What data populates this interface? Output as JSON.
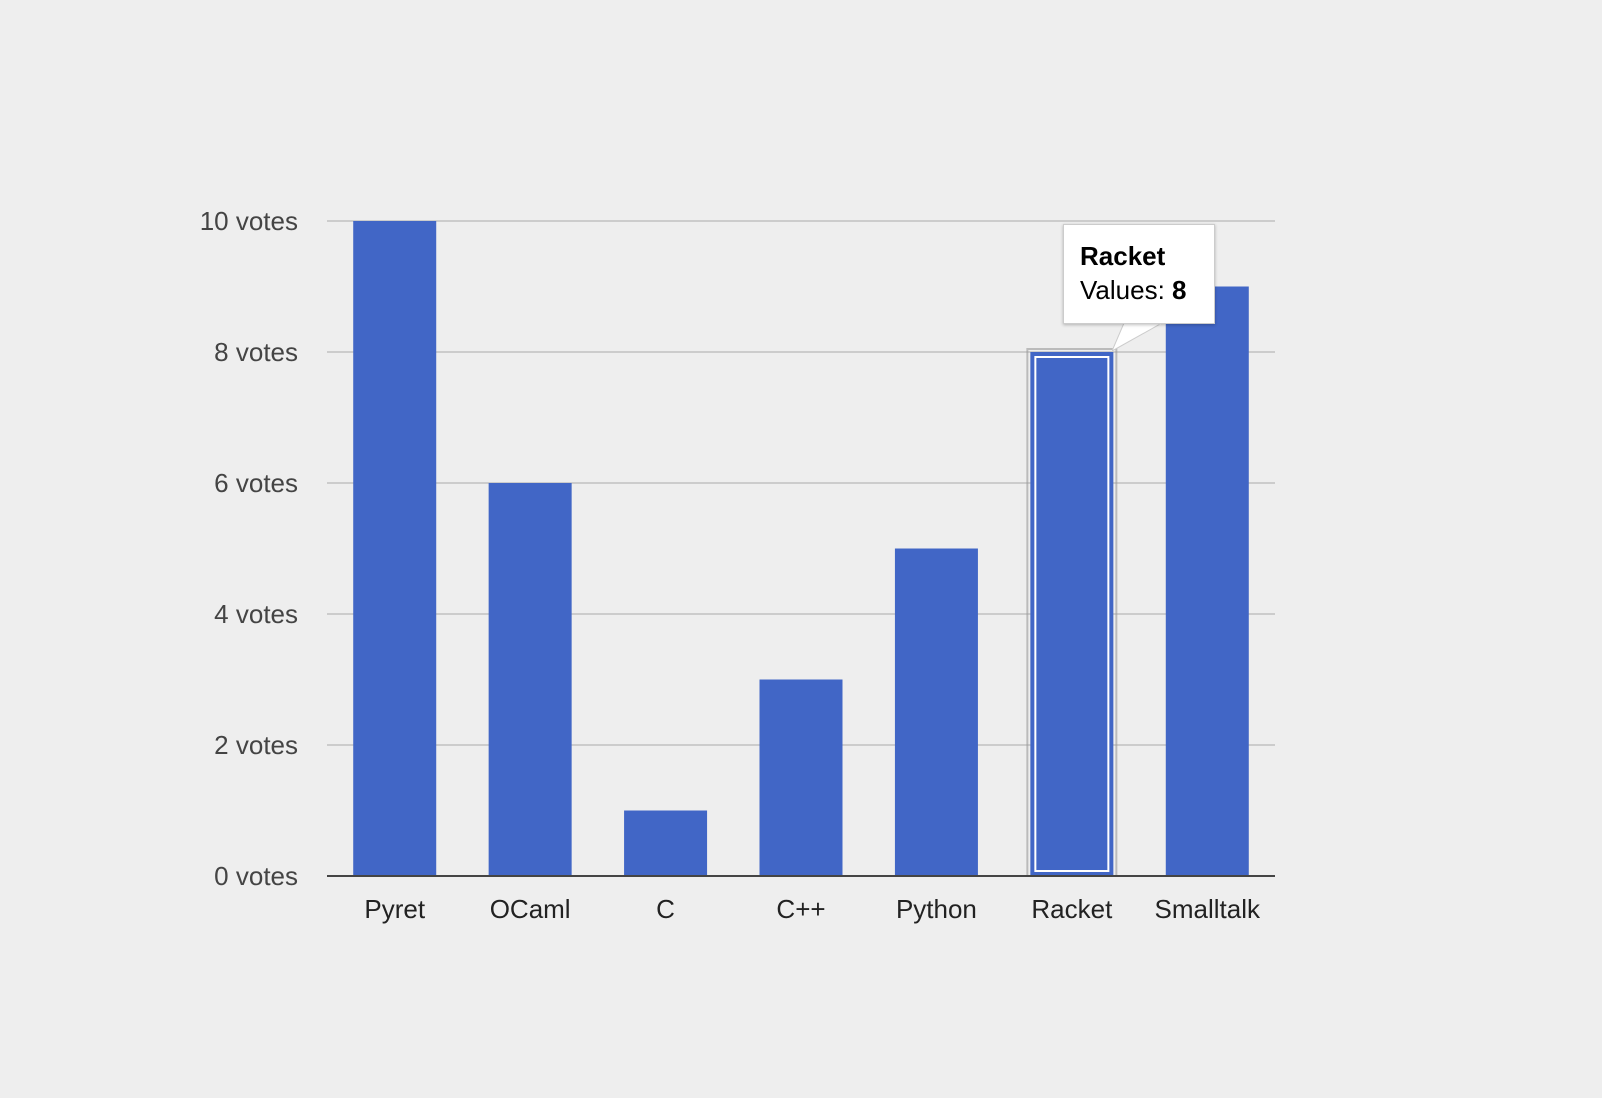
{
  "chart_data": {
    "type": "bar",
    "categories": [
      "Pyret",
      "OCaml",
      "C",
      "C++",
      "Python",
      "Racket",
      "Smalltalk"
    ],
    "values": [
      10,
      6,
      1,
      3,
      5,
      8,
      9
    ],
    "y_tick_labels": [
      "0 votes",
      "2 votes",
      "4 votes",
      "6 votes",
      "8 votes",
      "10 votes"
    ],
    "y_ticks": [
      0,
      2,
      4,
      6,
      8,
      10
    ],
    "ylim": [
      0,
      10
    ],
    "grid": true,
    "bar_color": "#4166c6",
    "gridline_color": "#cccccc",
    "axis_color": "#444444",
    "highlighted_category": "Racket"
  },
  "tooltip": {
    "title": "Racket",
    "label": "Values: ",
    "value": "8"
  }
}
